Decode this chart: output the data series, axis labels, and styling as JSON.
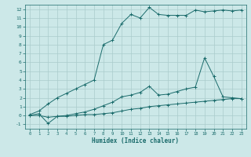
{
  "xlabel": "Humidex (Indice chaleur)",
  "bg_color": "#cce8e8",
  "grid_color": "#aacccc",
  "line_color": "#1a6b6b",
  "xlim": [
    -0.5,
    23.5
  ],
  "ylim": [
    -1.5,
    12.5
  ],
  "xticks": [
    0,
    1,
    2,
    3,
    4,
    5,
    6,
    7,
    8,
    9,
    10,
    11,
    12,
    13,
    14,
    15,
    16,
    17,
    18,
    19,
    20,
    21,
    22,
    23
  ],
  "yticks": [
    -1,
    0,
    1,
    2,
    3,
    4,
    5,
    6,
    7,
    8,
    9,
    10,
    11,
    12
  ],
  "line1_x": [
    0,
    1,
    2,
    3,
    4,
    5,
    6,
    7,
    8,
    9,
    10,
    11,
    12,
    13,
    14,
    15,
    16,
    17,
    18,
    19,
    20,
    21,
    22,
    23
  ],
  "line1_y": [
    0.0,
    0.0,
    -0.2,
    -0.1,
    -0.1,
    0.0,
    0.1,
    0.1,
    0.2,
    0.3,
    0.5,
    0.7,
    0.8,
    1.0,
    1.1,
    1.2,
    1.3,
    1.4,
    1.5,
    1.6,
    1.7,
    1.8,
    1.9,
    1.9
  ],
  "line2_x": [
    0,
    1,
    2,
    3,
    4,
    5,
    6,
    7,
    8,
    9,
    10,
    11,
    12,
    13,
    14,
    15,
    16,
    17,
    18,
    19,
    20,
    21,
    22,
    23
  ],
  "line2_y": [
    0.0,
    0.2,
    -0.9,
    -0.1,
    0.0,
    0.2,
    0.4,
    0.7,
    1.1,
    1.5,
    2.1,
    2.3,
    2.6,
    3.3,
    2.3,
    2.4,
    2.7,
    3.0,
    3.2,
    6.5,
    4.4,
    2.1,
    2.0,
    1.9
  ],
  "line3_x": [
    0,
    1,
    2,
    3,
    4,
    5,
    6,
    7,
    8,
    9,
    10,
    11,
    12,
    13,
    14,
    15,
    16,
    17,
    18,
    19,
    20,
    21,
    22,
    23
  ],
  "line3_y": [
    0.1,
    0.5,
    1.3,
    2.0,
    2.5,
    3.0,
    3.5,
    4.0,
    8.0,
    8.5,
    10.4,
    11.4,
    11.0,
    12.2,
    11.4,
    11.3,
    11.3,
    11.3,
    11.9,
    11.7,
    11.8,
    11.9,
    11.8,
    11.9
  ]
}
